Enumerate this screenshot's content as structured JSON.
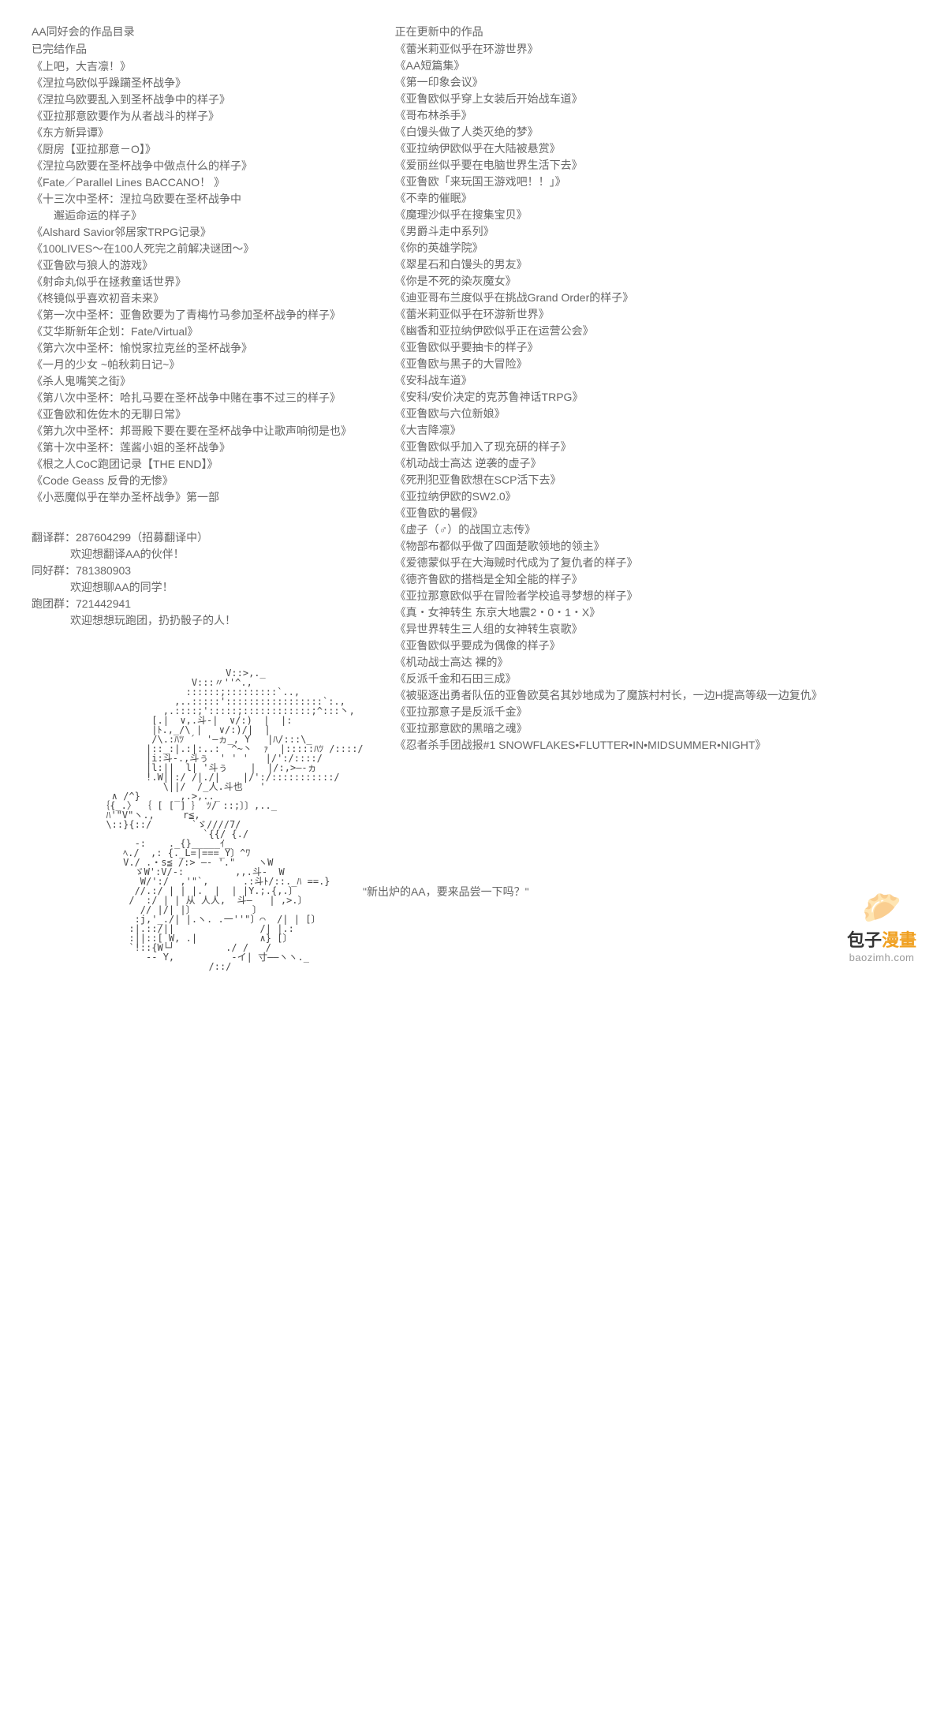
{
  "left": {
    "header": "AA同好会的作品目录",
    "subheader": "已完结作品",
    "items": [
      "《上吧，大吉凛！》",
      "《涅拉乌欧似乎躁躏圣杯战争》",
      "《涅拉乌欧要乱入到圣杯战争中的样子》",
      "《亚拉那意欧要作为从者战斗的样子》",
      "《东方新异谭》",
      "《厨房【亚拉那意－O】》",
      "《涅拉乌欧要在圣杯战争中做点什么的样子》",
      "《Fate／Parallel Lines BACCANO！ 》",
      "《十三次中圣杯：涅拉乌欧要在圣杯战争中\n　　邂逅命运的样子》",
      "《Alshard Savior邻居家TRPG记录》",
      "《100LIVES～在100人死完之前解决谜团～》",
      "《亚鲁欧与狼人的游戏》",
      "《射命丸似乎在拯救童话世界》",
      "《柊镜似乎喜欢初音未来》",
      "《第一次中圣杯：亚鲁欧要为了青梅竹马参加圣杯战争的样子》",
      "《艾华斯新年企划：Fate/Virtual》",
      "《第六次中圣杯：愉悦家拉克丝的圣杯战争》",
      "《一月的少女 ~帕秋莉日记~》",
      "《杀人鬼嘴笑之街》",
      "《第八次中圣杯：哈扎马要在圣杯战争中赌在事不过三的样子》",
      "《亚鲁欧和佐佐木的无聊日常》",
      "《第九次中圣杯：邦哥殿下要在要在圣杯战争中让歌声响彻是也》",
      "《第十次中圣杯：莲酱小姐的圣杯战争》",
      "《根之人CoC跑团记录【THE END】》",
      "《Code Geass 反骨的无惨》",
      "《小恶魔似乎在举办圣杯战争》第一部"
    ],
    "groups": [
      {
        "label": "翻译群：287604299（招募翻译中）",
        "sub": "欢迎想翻译AA的伙伴！"
      },
      {
        "label": "同好群：781380903",
        "sub": "欢迎想聊AA的同学！"
      },
      {
        "label": "跑团群：721442941",
        "sub": "欢迎想想玩跑团，扔扔骰子的人！"
      }
    ]
  },
  "right": {
    "header": "正在更新中的作品",
    "items": [
      "《蕾米莉亚似乎在环游世界》",
      "《AA短篇集》",
      "《第一印象会议》",
      "《亚鲁欧似乎穿上女装后开始战车道》",
      "《哥布林杀手》",
      "《白馒头做了人类灭绝的梦》",
      "《亚拉纳伊欧似乎在大陆被悬赏》",
      "《爱丽丝似乎要在电脑世界生活下去》",
      "《亚鲁欧「来玩国王游戏吧！！」》",
      "《不幸的催眠》",
      "《魔理沙似乎在搜集宝贝》",
      "《男爵斗走中系列》",
      "《你的英雄学院》",
      "《翠星石和白馒头的男友》",
      "《你是不死的染灰魔女》",
      "《迪亚哥布兰度似乎在挑战Grand Order的样子》",
      "《蕾米莉亚似乎在环游新世界》",
      "《幽香和亚拉纳伊欧似乎正在运营公会》",
      "《亚鲁欧似乎要抽卡的样子》",
      "《亚鲁欧与黑子的大冒险》",
      "《安科战车道》",
      "《安科/安价决定的克苏鲁神话TRPG》",
      "《亚鲁欧与六位新娘》",
      "《大吉降凛》",
      "《亚鲁欧似乎加入了现充研的样子》",
      "《机动战士高达 逆袭的虚子》",
      "《死刑犯亚鲁欧想在SCP活下去》",
      "《亚拉纳伊欧的SW2.0》",
      "《亚鲁欧的暑假》",
      "《虚子（♂）的战国立志传》",
      "《物部布都似乎做了四面楚歌领地的领主》",
      "《爱德蒙似乎在大海贼时代成为了复仇者的样子》",
      "《德齐鲁欧的搭档是全知全能的样子》",
      "《亚拉那意欧似乎在冒险者学校追寻梦想的样子》",
      "《真・女神转生 东京大地震2・0・1・X》",
      "《异世界转生三人组的女神转生哀歌》",
      "《亚鲁欧似乎要成为偶像的样子》",
      "《机动战士高达 裸的》",
      "《反派千金和石田三成》",
      "《被驱逐出勇者队伍的亚鲁欧莫名其妙地成为了魔族村村长，一边H提高等级一边复仇》",
      "《亚拉那意子是反派千金》",
      "《亚拉那意欧的黑暗之魂》",
      "《忍者杀手团战报#1 SNOWFLAKES•FLUTTER•IN•MIDSUMMER•NIGHT》"
    ]
  },
  "caption": "\"新出炉的AA，要来品尝一下吗？\"",
  "watermark": {
    "icon": "🥟",
    "brand": "包子",
    "accent": "漫畫",
    "url": "baozimh.com"
  },
  "ascii": "                       V::>,._\n                 V:::〃''^.,\n                ::::::;:::::::::`..,\n              ,..:::::':::::::::::::::::`:.,\n            ,.::::;':::::;::::::::::::;^:::丶,\n          [.|  ∨,.斗-|  ∨/:)  |  |:\n          |ﾄ.,_/\\ |   ∨/:)/|  |\n          /\\.:ﾊﾂ ´  '―ヵ_, Y   |ﾊ/:::\\_\n         |::_:|.:|:..:  ^~丶  ｧ  |:::::ﾊﾂ /::::/\n         |i:斗-.,斗ぅ  ' ' '   |/':/::::/\n         |l:||  l| '斗ぅ    |  |/:,>―‐ヵ\n         !.W||:/ /|./|    |/':/:::::::::::/\n            \\||/  /_人.斗也   '\n   ∧ /^}      _,.>,.._\n ｛{_.〉 ｛ [ [ ] ｝ ﾂ/ ::;〕〕,.._\n  ﾊ'\"V\"ヽ.,     r≦,\n  \\::}{::/       `ゞ////7/\n                   `{{/ {./\n       -:    ._{}_____ｲ_\n     ﾍ./  ,: {._L=|===_Y〕^ﾜ\n     V./ .・s≦ /:> ―‐ '.\"    ヽW\n       ゞW':V/-:         ,,.斗-  W\n        W/':/  ,'\"`,      .:斗ﾄ/::._ﾊ ==.}\n       //.:/ | | |.  |  | |Y.;.{,.〕\n      /  :/ | | 从 人人,  斗―   | ,>.〕\n        // |/| |〕          〕\n       :j,'_./| |.ヽ. .一''\"〕⌒  /| | [〕\n      :|.::/||               /| |.:\n      :||::[ W, .|           ∧} [〕\n      `!::{W└┘         ./ /   /\n         -- Y,          -イ| 寸――ヽヽ._\n                    /::/"
}
